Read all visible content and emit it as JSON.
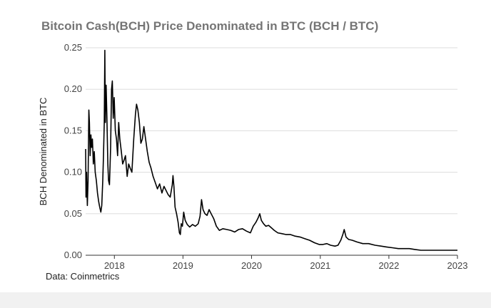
{
  "chart_data": {
    "type": "line",
    "title": "Bitcoin Cash(BCH) Price Denominated in BTC (BCH / BTC)",
    "ylabel": "BCH Denominated in BTC",
    "xlabel": "",
    "source": "Data: Coinmetrics",
    "ylim": [
      0,
      0.25
    ],
    "xlim": [
      "2017-08-01",
      "2023-01-01"
    ],
    "y_ticks": [
      "0.00",
      "0.05",
      "0.10",
      "0.15",
      "0.20",
      "0.25"
    ],
    "x_ticks": [
      {
        "label": "2018",
        "date": "2018-01-01"
      },
      {
        "label": "2019",
        "date": "2019-01-01"
      },
      {
        "label": "2020",
        "date": "2020-01-01"
      },
      {
        "label": "2021",
        "date": "2021-01-01"
      },
      {
        "label": "2022",
        "date": "2022-01-01"
      },
      {
        "label": "2023",
        "date": "2023-01-01"
      }
    ],
    "grid": true,
    "series": [
      {
        "color": "#000000",
        "points": [
          [
            "2017-08-01",
            0.128
          ],
          [
            "2017-08-03",
            0.07
          ],
          [
            "2017-08-06",
            0.1
          ],
          [
            "2017-08-10",
            0.06
          ],
          [
            "2017-08-14",
            0.09
          ],
          [
            "2017-08-18",
            0.175
          ],
          [
            "2017-08-21",
            0.16
          ],
          [
            "2017-08-25",
            0.12
          ],
          [
            "2017-08-29",
            0.145
          ],
          [
            "2017-09-02",
            0.13
          ],
          [
            "2017-09-06",
            0.14
          ],
          [
            "2017-09-11",
            0.11
          ],
          [
            "2017-09-16",
            0.125
          ],
          [
            "2017-09-21",
            0.1
          ],
          [
            "2017-09-27",
            0.09
          ],
          [
            "2017-10-03",
            0.075
          ],
          [
            "2017-10-09",
            0.065
          ],
          [
            "2017-10-15",
            0.058
          ],
          [
            "2017-10-21",
            0.052
          ],
          [
            "2017-10-26",
            0.06
          ],
          [
            "2017-10-31",
            0.09
          ],
          [
            "2017-11-04",
            0.12
          ],
          [
            "2017-11-08",
            0.16
          ],
          [
            "2017-11-11",
            0.247
          ],
          [
            "2017-11-14",
            0.16
          ],
          [
            "2017-11-18",
            0.205
          ],
          [
            "2017-11-22",
            0.17
          ],
          [
            "2017-11-27",
            0.11
          ],
          [
            "2017-12-01",
            0.09
          ],
          [
            "2017-12-06",
            0.085
          ],
          [
            "2017-12-12",
            0.13
          ],
          [
            "2017-12-17",
            0.2
          ],
          [
            "2017-12-21",
            0.21
          ],
          [
            "2017-12-26",
            0.165
          ],
          [
            "2017-12-31",
            0.19
          ],
          [
            "2018-01-06",
            0.15
          ],
          [
            "2018-01-12",
            0.14
          ],
          [
            "2018-01-18",
            0.12
          ],
          [
            "2018-01-24",
            0.16
          ],
          [
            "2018-01-30",
            0.14
          ],
          [
            "2018-02-07",
            0.125
          ],
          [
            "2018-02-14",
            0.11
          ],
          [
            "2018-02-22",
            0.115
          ],
          [
            "2018-03-01",
            0.12
          ],
          [
            "2018-03-10",
            0.095
          ],
          [
            "2018-03-18",
            0.11
          ],
          [
            "2018-03-26",
            0.105
          ],
          [
            "2018-04-04",
            0.1
          ],
          [
            "2018-04-14",
            0.14
          ],
          [
            "2018-04-23",
            0.17
          ],
          [
            "2018-04-29",
            0.182
          ],
          [
            "2018-05-06",
            0.175
          ],
          [
            "2018-05-14",
            0.16
          ],
          [
            "2018-05-22",
            0.135
          ],
          [
            "2018-05-30",
            0.14
          ],
          [
            "2018-06-07",
            0.155
          ],
          [
            "2018-06-16",
            0.14
          ],
          [
            "2018-06-25",
            0.125
          ],
          [
            "2018-07-05",
            0.112
          ],
          [
            "2018-07-15",
            0.105
          ],
          [
            "2018-07-26",
            0.095
          ],
          [
            "2018-08-06",
            0.088
          ],
          [
            "2018-08-18",
            0.08
          ],
          [
            "2018-08-30",
            0.086
          ],
          [
            "2018-09-11",
            0.075
          ],
          [
            "2018-09-22",
            0.083
          ],
          [
            "2018-10-03",
            0.078
          ],
          [
            "2018-10-14",
            0.073
          ],
          [
            "2018-10-25",
            0.07
          ],
          [
            "2018-11-05",
            0.085
          ],
          [
            "2018-11-09",
            0.096
          ],
          [
            "2018-11-14",
            0.083
          ],
          [
            "2018-11-20",
            0.058
          ],
          [
            "2018-11-28",
            0.05
          ],
          [
            "2018-12-06",
            0.04
          ],
          [
            "2018-12-13",
            0.027
          ],
          [
            "2018-12-18",
            0.025
          ],
          [
            "2018-12-23",
            0.038
          ],
          [
            "2018-12-29",
            0.035
          ],
          [
            "2019-01-05",
            0.052
          ],
          [
            "2019-01-13",
            0.042
          ],
          [
            "2019-01-24",
            0.037
          ],
          [
            "2019-02-06",
            0.034
          ],
          [
            "2019-02-21",
            0.037
          ],
          [
            "2019-03-08",
            0.035
          ],
          [
            "2019-03-23",
            0.038
          ],
          [
            "2019-04-02",
            0.047
          ],
          [
            "2019-04-10",
            0.067
          ],
          [
            "2019-04-18",
            0.055
          ],
          [
            "2019-04-28",
            0.05
          ],
          [
            "2019-05-09",
            0.048
          ],
          [
            "2019-05-20",
            0.055
          ],
          [
            "2019-05-31",
            0.05
          ],
          [
            "2019-06-14",
            0.044
          ],
          [
            "2019-06-28",
            0.035
          ],
          [
            "2019-07-14",
            0.03
          ],
          [
            "2019-08-01",
            0.032
          ],
          [
            "2019-08-22",
            0.031
          ],
          [
            "2019-09-12",
            0.03
          ],
          [
            "2019-10-03",
            0.028
          ],
          [
            "2019-10-24",
            0.031
          ],
          [
            "2019-11-14",
            0.032
          ],
          [
            "2019-12-05",
            0.029
          ],
          [
            "2019-12-26",
            0.027
          ],
          [
            "2020-01-10",
            0.035
          ],
          [
            "2020-01-25",
            0.04
          ],
          [
            "2020-02-05",
            0.045
          ],
          [
            "2020-02-14",
            0.05
          ],
          [
            "2020-02-22",
            0.042
          ],
          [
            "2020-03-05",
            0.038
          ],
          [
            "2020-03-17",
            0.035
          ],
          [
            "2020-04-01",
            0.036
          ],
          [
            "2020-04-16",
            0.033
          ],
          [
            "2020-05-01",
            0.03
          ],
          [
            "2020-05-20",
            0.027
          ],
          [
            "2020-06-10",
            0.026
          ],
          [
            "2020-07-01",
            0.025
          ],
          [
            "2020-07-25",
            0.025
          ],
          [
            "2020-08-20",
            0.023
          ],
          [
            "2020-09-15",
            0.022
          ],
          [
            "2020-10-10",
            0.02
          ],
          [
            "2020-11-05",
            0.018
          ],
          [
            "2020-12-01",
            0.015
          ],
          [
            "2020-12-26",
            0.013
          ],
          [
            "2021-01-15",
            0.013
          ],
          [
            "2021-02-05",
            0.014
          ],
          [
            "2021-02-25",
            0.012
          ],
          [
            "2021-03-20",
            0.011
          ],
          [
            "2021-04-05",
            0.012
          ],
          [
            "2021-04-20",
            0.018
          ],
          [
            "2021-05-01",
            0.025
          ],
          [
            "2021-05-08",
            0.031
          ],
          [
            "2021-05-18",
            0.022
          ],
          [
            "2021-06-01",
            0.019
          ],
          [
            "2021-06-20",
            0.018
          ],
          [
            "2021-07-15",
            0.016
          ],
          [
            "2021-08-15",
            0.014
          ],
          [
            "2021-09-15",
            0.014
          ],
          [
            "2021-10-20",
            0.012
          ],
          [
            "2021-11-20",
            0.011
          ],
          [
            "2021-12-20",
            0.01
          ],
          [
            "2022-01-20",
            0.009
          ],
          [
            "2022-02-20",
            0.008
          ],
          [
            "2022-03-20",
            0.008
          ],
          [
            "2022-04-20",
            0.008
          ],
          [
            "2022-05-20",
            0.007
          ],
          [
            "2022-06-20",
            0.006
          ],
          [
            "2022-07-20",
            0.006
          ],
          [
            "2022-08-20",
            0.006
          ],
          [
            "2022-09-20",
            0.006
          ],
          [
            "2022-10-20",
            0.006
          ],
          [
            "2022-11-20",
            0.006
          ],
          [
            "2022-12-20",
            0.006
          ],
          [
            "2023-01-01",
            0.006
          ]
        ]
      }
    ]
  }
}
